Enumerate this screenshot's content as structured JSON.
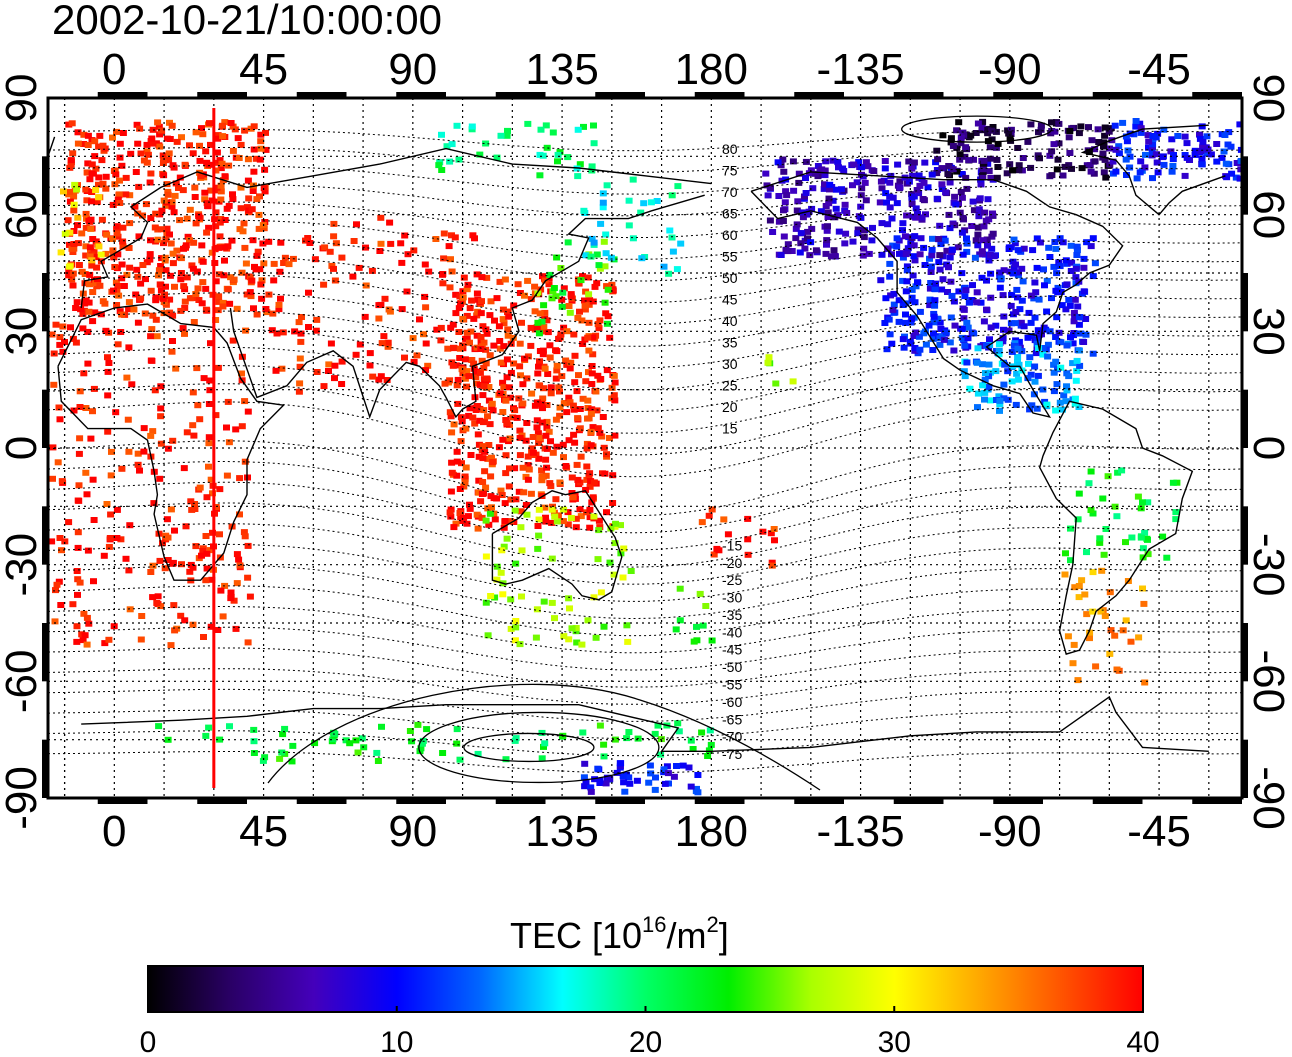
{
  "title": "2002-10-21/10:00:00",
  "axes": {
    "lon_labels": [
      "0",
      "45",
      "90",
      "135",
      "180",
      "-135",
      "-90",
      "-45"
    ],
    "lat_labels": [
      "90",
      "60",
      "30",
      "0",
      "-30",
      "-60",
      "-90"
    ]
  },
  "colorbar": {
    "label_main": "TEC  [10",
    "label_exp1": "16",
    "label_mid": "/m",
    "label_exp2": "2",
    "label_end": "]",
    "ticks": [
      "0",
      "10",
      "20",
      "30",
      "40"
    ],
    "min": 0,
    "max": 40,
    "colors": [
      "#000000",
      "#2a0066",
      "#4400bb",
      "#0000ff",
      "#0066ff",
      "#00ffff",
      "#00ff66",
      "#00ee00",
      "#aaff00",
      "#ffff00",
      "#ffaa00",
      "#ff5500",
      "#ff0000"
    ]
  },
  "magnetic_latitude_labels": [
    {
      "text": "80",
      "lat": 80
    },
    {
      "text": "75",
      "lat": 75
    },
    {
      "text": "70",
      "lat": 70
    },
    {
      "text": "65",
      "lat": 65
    },
    {
      "text": "60",
      "lat": 60
    },
    {
      "text": "55",
      "lat": 55
    },
    {
      "text": "50",
      "lat": 50
    },
    {
      "text": "45",
      "lat": 45
    },
    {
      "text": "40",
      "lat": 40
    },
    {
      "text": "35",
      "lat": 35
    },
    {
      "text": "30",
      "lat": 30
    },
    {
      "text": "25",
      "lat": 25
    },
    {
      "text": "20",
      "lat": 20
    },
    {
      "text": "15",
      "lat": 15
    },
    {
      "text": "-15",
      "lat": -15
    },
    {
      "text": "-20",
      "lat": -20
    },
    {
      "text": "-25",
      "lat": -25
    },
    {
      "text": "-30",
      "lat": -30
    },
    {
      "text": "-35",
      "lat": -35
    },
    {
      "text": "-40",
      "lat": -40
    },
    {
      "text": "-45",
      "lat": -45
    },
    {
      "text": "-50",
      "lat": -50
    },
    {
      "text": "-55",
      "lat": -55
    },
    {
      "text": "-60",
      "lat": -60
    },
    {
      "text": "-65",
      "lat": -65
    },
    {
      "text": "-70",
      "lat": -70
    },
    {
      "text": "-75",
      "lat": -75
    }
  ],
  "marker_line": {
    "lon": 30,
    "color": "#ff0000"
  },
  "tec_regions": [
    {
      "name": "europe",
      "lon": [
        -15,
        45
      ],
      "lat": [
        35,
        85
      ],
      "tec": 39
    },
    {
      "name": "europe-west-edge",
      "lon": [
        -18,
        -5
      ],
      "lat": [
        45,
        70
      ],
      "tec": 30
    },
    {
      "name": "north-africa",
      "lon": [
        -20,
        40
      ],
      "lat": [
        -50,
        35
      ],
      "tec": 39
    },
    {
      "name": "southern-africa",
      "lon": [
        10,
        40
      ],
      "lat": [
        -40,
        -20
      ],
      "tec": 39
    },
    {
      "name": "asia-red",
      "lon": [
        45,
        110
      ],
      "lat": [
        15,
        60
      ],
      "tec": 39
    },
    {
      "name": "east-asia",
      "lon": [
        100,
        150
      ],
      "lat": [
        -20,
        45
      ],
      "tec": 39
    },
    {
      "name": "japan",
      "lon": [
        125,
        150
      ],
      "lat": [
        30,
        55
      ],
      "tec": 24
    },
    {
      "name": "kamchatka",
      "lon": [
        140,
        170
      ],
      "lat": [
        45,
        70
      ],
      "tec": 17
    },
    {
      "name": "arctic-siberia",
      "lon": [
        95,
        150
      ],
      "lat": [
        70,
        85
      ],
      "tec": 20
    },
    {
      "name": "australia",
      "lon": [
        110,
        155
      ],
      "lat": [
        -50,
        -15
      ],
      "tec": 27
    },
    {
      "name": "new-zealand",
      "lon": [
        165,
        180
      ],
      "lat": [
        -50,
        -35
      ],
      "tec": 24
    },
    {
      "name": "pacific-south",
      "lon": [
        175,
        200
      ],
      "lat": [
        -30,
        -15
      ],
      "tec": 39
    },
    {
      "name": "hawaii",
      "lon": [
        195,
        205
      ],
      "lat": [
        15,
        25
      ],
      "tec": 26
    },
    {
      "name": "north-america",
      "lon": [
        230,
        295
      ],
      "lat": [
        25,
        55
      ],
      "tec": 10
    },
    {
      "name": "alaska-canada",
      "lon": [
        195,
        265
      ],
      "lat": [
        50,
        75
      ],
      "tec": 7
    },
    {
      "name": "arctic-canada",
      "lon": [
        245,
        300
      ],
      "lat": [
        70,
        85
      ],
      "tec": 3
    },
    {
      "name": "greenland",
      "lon": [
        300,
        340
      ],
      "lat": [
        70,
        85
      ],
      "tec": 10
    },
    {
      "name": "central-america",
      "lon": [
        255,
        290
      ],
      "lat": [
        10,
        28
      ],
      "tec": 14
    },
    {
      "name": "south-america-north",
      "lon": [
        285,
        320
      ],
      "lat": [
        -30,
        -5
      ],
      "tec": 22
    },
    {
      "name": "south-america-south",
      "lon": [
        285,
        310
      ],
      "lat": [
        -60,
        -30
      ],
      "tec": 34
    },
    {
      "name": "antarctic-ring",
      "lon": [
        10,
        180
      ],
      "lat": [
        -80,
        -70
      ],
      "tec": 22
    },
    {
      "name": "south-pole-blue",
      "lon": [
        140,
        175
      ],
      "lat": [
        -88,
        -80
      ],
      "tec": 10
    }
  ]
}
